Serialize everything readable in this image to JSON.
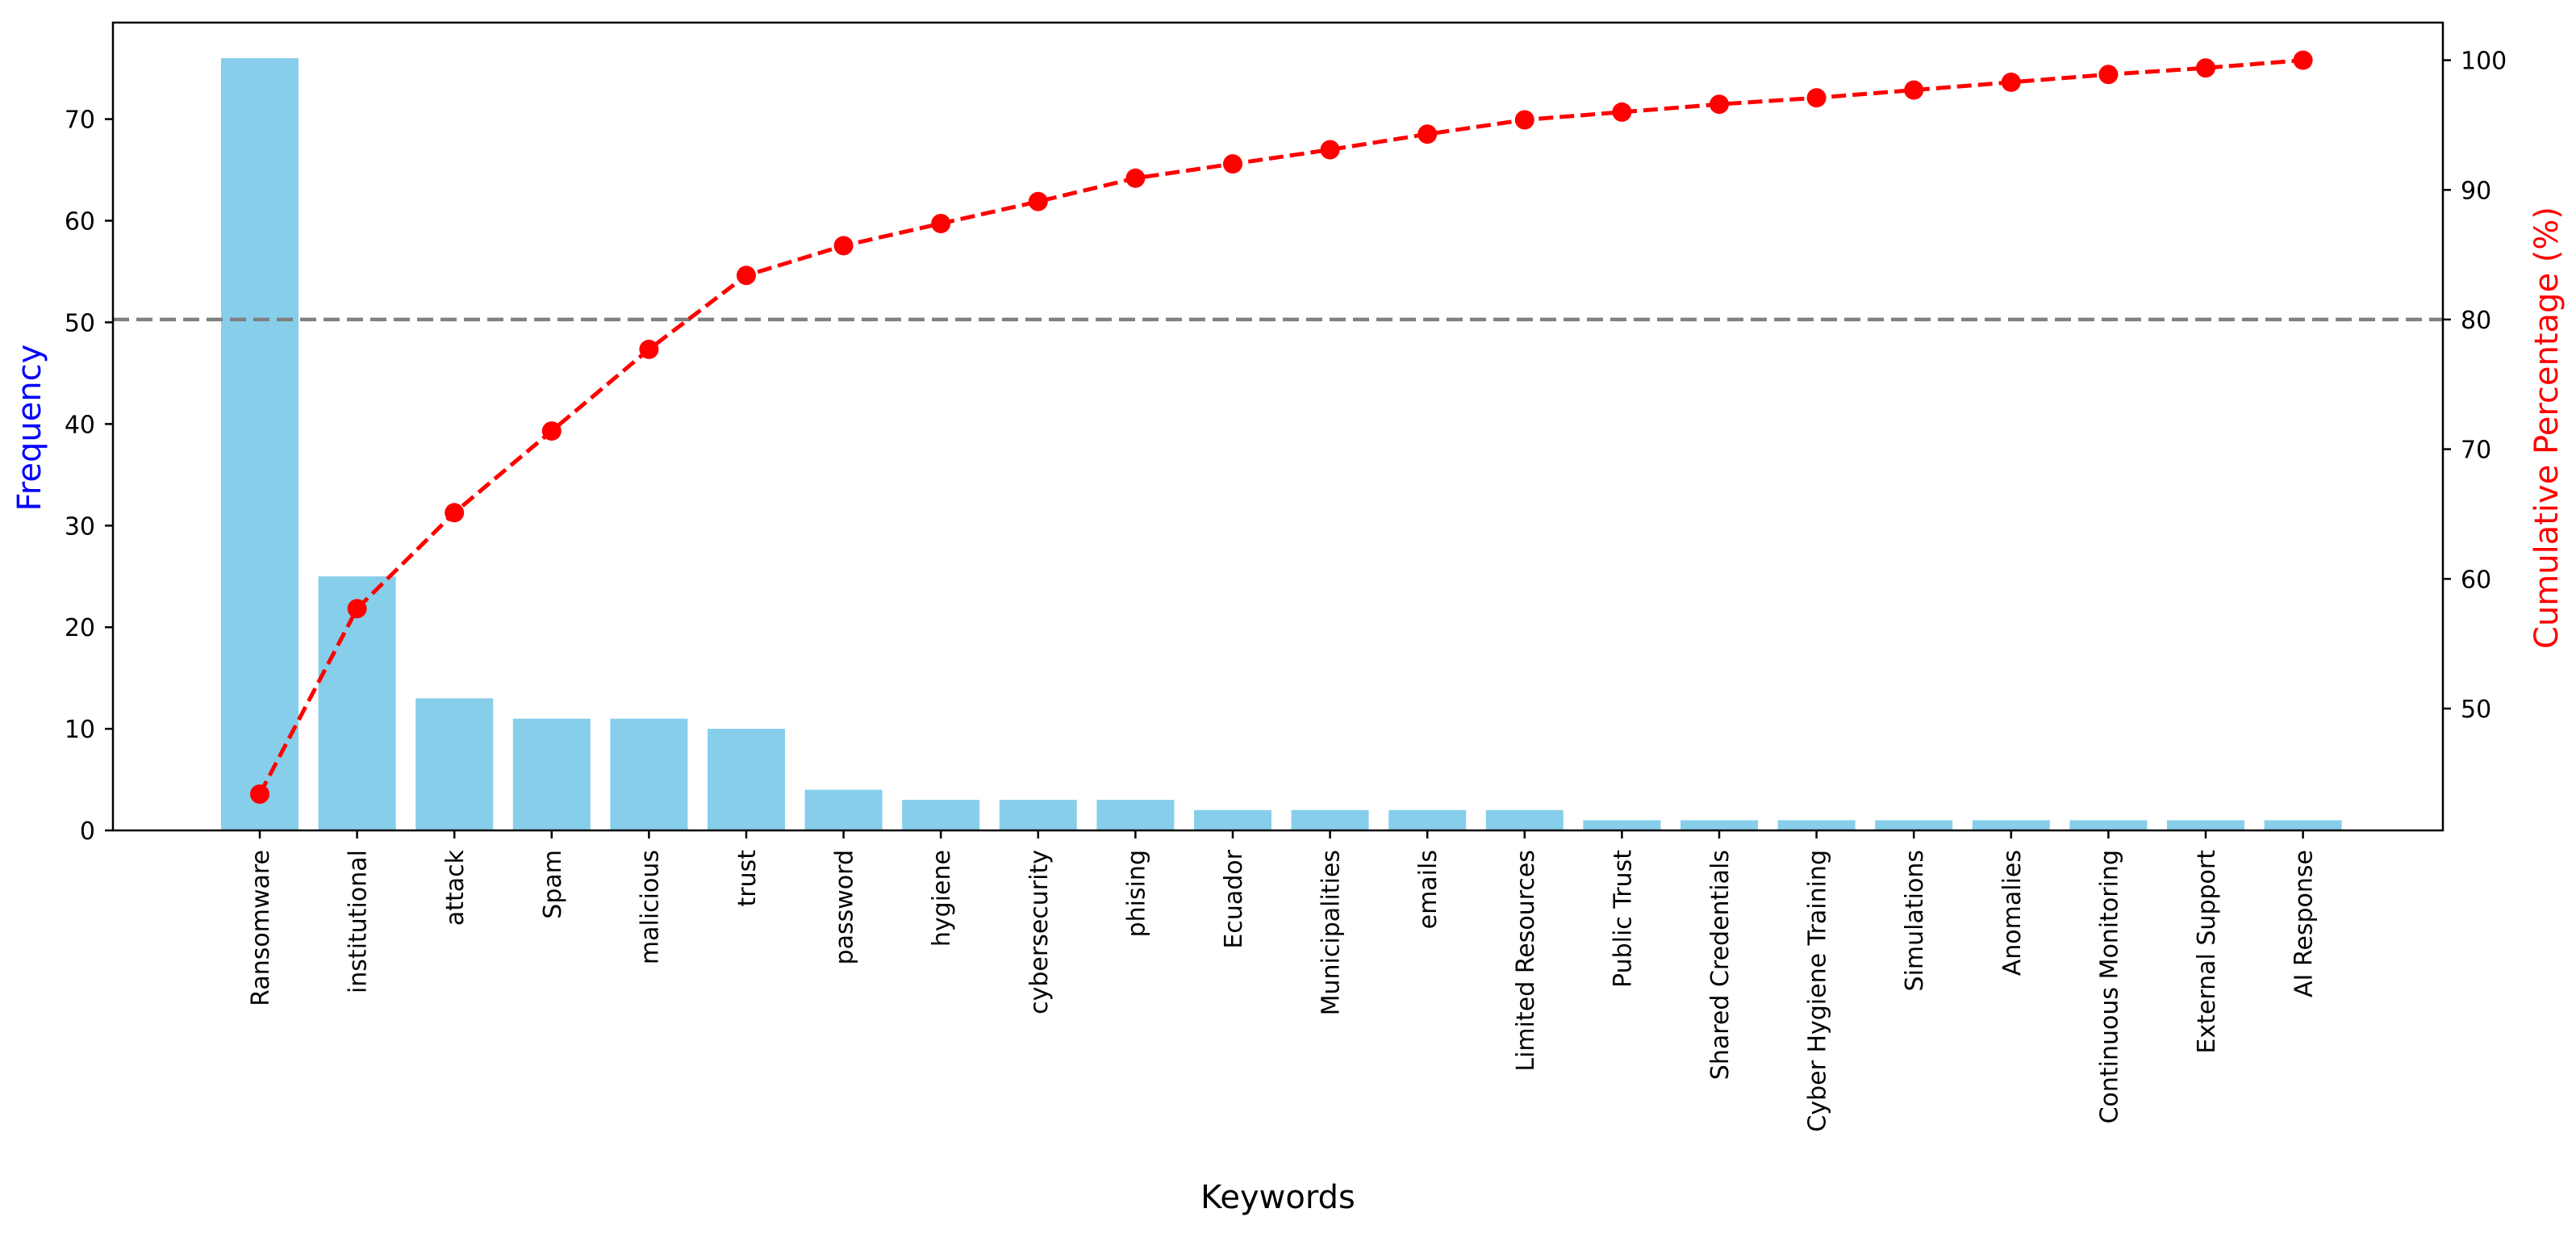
{
  "chart_data": {
    "type": "bar",
    "title": "",
    "xlabel": "Keywords",
    "ylabel": "Frequency",
    "y2label": "Cumulative Percentage (%)",
    "categories": [
      "Ransomware",
      "institutional",
      "attack",
      "Spam",
      "malicious",
      "trust",
      "password",
      "hygiene",
      "cybersecurity",
      "phising",
      "Ecuador",
      "Municipalities",
      "emails",
      "Limited Resources",
      "Public Trust",
      "Shared Credentials",
      "Cyber Hygiene Training",
      "Simulations",
      "Anomalies",
      "Continuous Monitoring",
      "External Support",
      "AI Response"
    ],
    "series": [
      {
        "type": "bar",
        "axis": "left",
        "values": [
          76,
          25,
          13,
          11,
          11,
          10,
          4,
          3,
          3,
          3,
          2,
          2,
          2,
          2,
          1,
          1,
          1,
          1,
          1,
          1,
          1,
          1
        ]
      },
      {
        "type": "line",
        "axis": "right",
        "style": "dashed, circle markers",
        "values": [
          43.4,
          57.7,
          65.1,
          71.4,
          77.7,
          83.4,
          85.7,
          87.4,
          89.1,
          90.9,
          92.0,
          93.1,
          94.3,
          95.4,
          96.0,
          96.6,
          97.1,
          97.7,
          98.3,
          98.9,
          99.4,
          100.0
        ]
      }
    ],
    "reference_line": {
      "axis": "right",
      "value": 80,
      "style": "dashed",
      "color": "#808080"
    },
    "ylim": [
      0,
      79.5
    ],
    "y2lim": [
      40.6,
      102.9
    ],
    "yticks": [
      0,
      10,
      20,
      30,
      40,
      50,
      60,
      70
    ],
    "y2ticks": [
      50,
      60,
      70,
      80,
      90,
      100
    ],
    "grid": false,
    "legend": "none",
    "colors": {
      "bars": "#87CEEB",
      "line": "#FF0000",
      "reference": "#808080",
      "left_label": "#0000FF",
      "right_label": "#FF0000"
    }
  }
}
